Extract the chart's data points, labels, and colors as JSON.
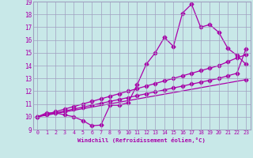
{
  "xlabel": "Windchill (Refroidissement éolien,°C)",
  "xlim": [
    -0.5,
    23.5
  ],
  "ylim": [
    9,
    19
  ],
  "xticks": [
    0,
    1,
    2,
    3,
    4,
    5,
    6,
    7,
    8,
    9,
    10,
    11,
    12,
    13,
    14,
    15,
    16,
    17,
    18,
    19,
    20,
    21,
    22,
    23
  ],
  "yticks": [
    9,
    10,
    11,
    12,
    13,
    14,
    15,
    16,
    17,
    18,
    19
  ],
  "bg_color": "#c8e8e8",
  "line_color": "#aa00aa",
  "grid_color": "#a0a0c0",
  "line1_x": [
    0,
    1,
    2,
    3,
    4,
    5,
    6,
    7,
    8,
    9,
    10,
    11,
    12,
    13,
    14,
    15,
    16,
    17,
    18,
    19,
    20,
    21,
    22,
    23
  ],
  "line1_y": [
    10.0,
    10.3,
    10.3,
    10.15,
    10.0,
    9.7,
    9.3,
    9.35,
    10.9,
    10.9,
    11.1,
    12.5,
    14.1,
    15.0,
    16.2,
    15.5,
    18.1,
    18.8,
    17.0,
    17.2,
    16.6,
    15.35,
    14.8,
    14.1
  ],
  "line2_x": [
    0,
    23
  ],
  "line2_y": [
    10.0,
    12.9
  ],
  "line3_x": [
    0,
    1,
    2,
    3,
    4,
    5,
    6,
    7,
    8,
    9,
    10,
    11,
    12,
    13,
    14,
    15,
    16,
    17,
    18,
    19,
    20,
    21,
    22,
    23
  ],
  "line3_y": [
    10.0,
    10.15,
    10.3,
    10.45,
    10.6,
    10.75,
    10.9,
    11.05,
    11.2,
    11.35,
    11.5,
    11.65,
    11.8,
    11.95,
    12.1,
    12.25,
    12.4,
    12.55,
    12.7,
    12.85,
    13.0,
    13.2,
    13.4,
    15.3
  ],
  "line4_x": [
    0,
    1,
    2,
    3,
    4,
    5,
    6,
    7,
    8,
    9,
    10,
    11,
    12,
    13,
    14,
    15,
    16,
    17,
    18,
    19,
    20,
    21,
    22,
    23
  ],
  "line4_y": [
    10.0,
    10.2,
    10.4,
    10.6,
    10.8,
    11.0,
    11.2,
    11.4,
    11.6,
    11.8,
    12.0,
    12.2,
    12.4,
    12.6,
    12.8,
    13.0,
    13.2,
    13.4,
    13.6,
    13.8,
    14.0,
    14.3,
    14.6,
    14.85
  ]
}
